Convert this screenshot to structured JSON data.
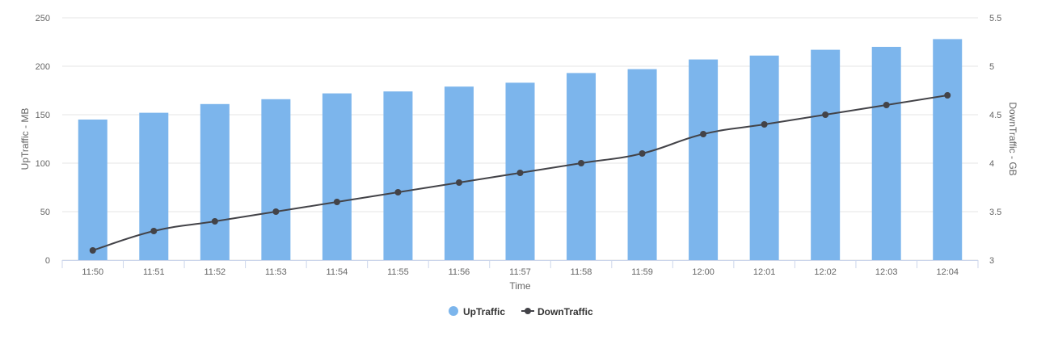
{
  "chart_data": {
    "type": "bar",
    "categories": [
      "11:50",
      "11:51",
      "11:52",
      "11:53",
      "11:54",
      "11:55",
      "11:56",
      "11:57",
      "11:58",
      "11:59",
      "12:00",
      "12:01",
      "12:02",
      "12:03",
      "12:04"
    ],
    "xlabel": "Time",
    "series": [
      {
        "name": "UpTraffic",
        "type": "bar",
        "axis": "left",
        "color": "#7cb5ec",
        "values": [
          145,
          152,
          161,
          166,
          172,
          174,
          179,
          183,
          193,
          197,
          207,
          211,
          217,
          220,
          228
        ]
      },
      {
        "name": "DownTraffic",
        "type": "line",
        "axis": "right",
        "color": "#434348",
        "values": [
          3.1,
          3.3,
          3.4,
          3.5,
          3.6,
          3.7,
          3.8,
          3.9,
          4.0,
          4.1,
          4.3,
          4.4,
          4.5,
          4.6,
          4.7
        ]
      }
    ],
    "y_left": {
      "label": "UpTraffic - MB",
      "lim": [
        0,
        250
      ],
      "ticks": [
        "0",
        "50",
        "100",
        "150",
        "200",
        "250"
      ]
    },
    "y_right": {
      "label": "DownTraffic - GB",
      "lim": [
        3,
        5.5
      ],
      "ticks": [
        "3",
        "3.5",
        "4",
        "4.5",
        "5",
        "5.5"
      ]
    },
    "grid": true,
    "legend": "bottom-center"
  }
}
